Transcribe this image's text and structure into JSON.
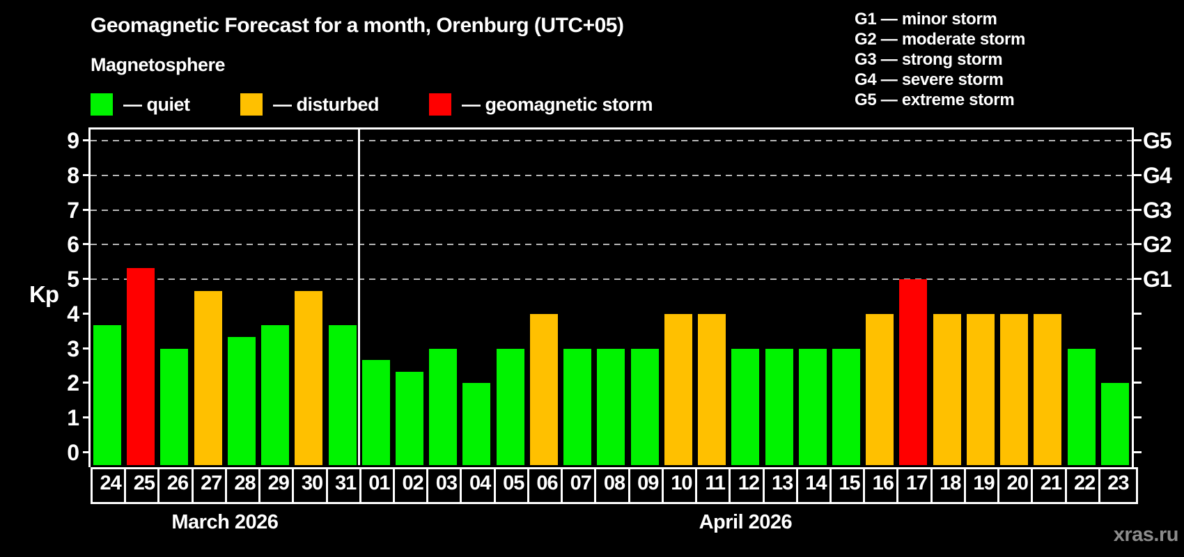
{
  "title": "Geomagnetic Forecast for a month, Orenburg (UTC+05)",
  "subtitle": "Magnetosphere",
  "legend": {
    "items": [
      {
        "status": "quiet",
        "label": "— quiet",
        "color": "#00f300"
      },
      {
        "status": "disturbed",
        "label": "— disturbed",
        "color": "#ffc000"
      },
      {
        "status": "storm",
        "label": "— geomagnetic storm",
        "color": "#ff0000"
      }
    ]
  },
  "g_scale_legend": {
    "lines": [
      "G1 — minor storm",
      "G2 — moderate storm",
      "G3 — strong storm",
      "G4 — severe storm",
      "G5 — extreme storm"
    ]
  },
  "watermark": "xras.ru",
  "chart_data": {
    "type": "bar",
    "title": "Geomagnetic Forecast for a month, Orenburg (UTC+05)",
    "ylabel": "Kp",
    "xlabel": "",
    "ylim": [
      -0.37,
      9.37
    ],
    "y_ticks": [
      0,
      1,
      2,
      3,
      4,
      5,
      6,
      7,
      8,
      9
    ],
    "gridlines_at_kp": [
      5,
      6,
      7,
      8,
      9
    ],
    "grid": "dashed-horizontal",
    "right_axis": {
      "G1": 5,
      "G2": 6,
      "G3": 7,
      "G4": 8,
      "G5": 9
    },
    "legend_position": "top",
    "months": [
      {
        "label": "March 2026",
        "days": 8
      },
      {
        "label": "April 2026",
        "days": 23
      }
    ],
    "categories": [
      "24",
      "25",
      "26",
      "27",
      "28",
      "29",
      "30",
      "31",
      "01",
      "02",
      "03",
      "04",
      "05",
      "06",
      "07",
      "08",
      "09",
      "10",
      "11",
      "12",
      "13",
      "14",
      "15",
      "16",
      "17",
      "18",
      "19",
      "20",
      "21",
      "22",
      "23"
    ],
    "values": [
      3.67,
      5.33,
      3.0,
      4.67,
      3.33,
      3.67,
      4.67,
      3.67,
      2.67,
      2.33,
      3.0,
      2.0,
      3.0,
      4.0,
      3.0,
      3.0,
      3.0,
      4.0,
      4.0,
      3.0,
      3.0,
      3.0,
      3.0,
      4.0,
      5.0,
      4.0,
      4.0,
      4.0,
      4.0,
      3.0,
      2.0
    ],
    "statuses": [
      "quiet",
      "storm",
      "quiet",
      "disturbed",
      "quiet",
      "quiet",
      "disturbed",
      "quiet",
      "quiet",
      "quiet",
      "quiet",
      "quiet",
      "quiet",
      "disturbed",
      "quiet",
      "quiet",
      "quiet",
      "disturbed",
      "disturbed",
      "quiet",
      "quiet",
      "quiet",
      "quiet",
      "disturbed",
      "storm",
      "disturbed",
      "disturbed",
      "disturbed",
      "disturbed",
      "quiet",
      "quiet"
    ]
  },
  "colors": {
    "background": "#000000",
    "quiet": "#00f300",
    "disturbed": "#ffc000",
    "storm": "#ff0000",
    "axis": "#ffffff",
    "grid": "#b8b8b8",
    "text": "#ffffff",
    "watermark": "#8c8c8c"
  }
}
